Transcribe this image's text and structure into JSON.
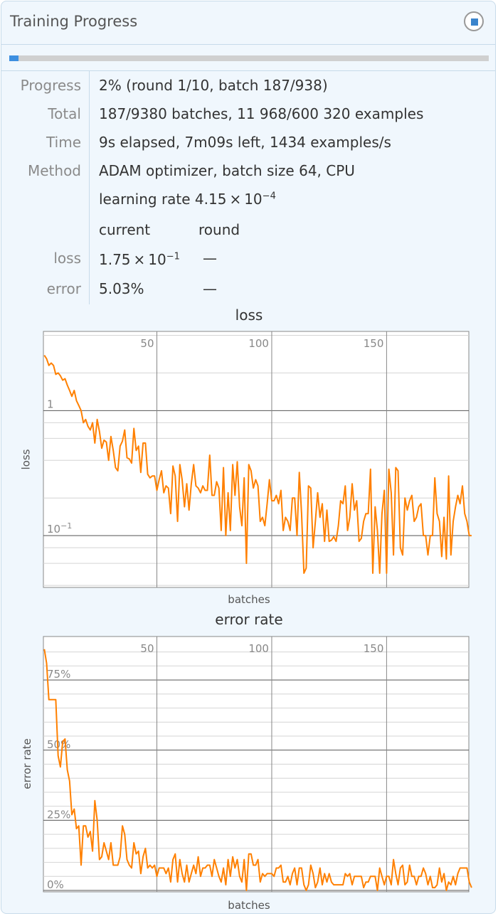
{
  "window": {
    "title": "Training Progress",
    "stop_icon": "stop-icon",
    "progress_fraction": 0.02,
    "accent": "#3d8fe0"
  },
  "info": {
    "progress_label": "Progress",
    "progress_value": "2% (round 1/10, batch 187/938)",
    "total_label": "Total",
    "total_value": "187/9380 batches, 11 968/600 320 examples",
    "time_label": "Time",
    "time_value": "9s elapsed, 7m09s left, 1434 examples/s",
    "method_label": "Method",
    "method_value": "ADAM optimizer, batch size 64, CPU",
    "lr_text": "learning rate 4.15 × 10",
    "lr_exp": "−4",
    "col_current": "current",
    "col_round": "round",
    "loss_label": "loss",
    "loss_current": "1.75 × 10",
    "loss_current_exp": "−1",
    "loss_round": "—",
    "error_label": "error",
    "error_current": "5.03%",
    "error_round": "—"
  },
  "chart_data": [
    {
      "type": "line",
      "title": "loss",
      "xlabel": "batches",
      "ylabel": "loss",
      "yscale": "log",
      "xlim": [
        0.6,
        185.8
      ],
      "ylim": [
        0.0385,
        4.3
      ],
      "xticks": [
        50,
        100,
        150
      ],
      "xtick_labels": [
        "50",
        "100",
        "150"
      ],
      "yticks": [
        1,
        0.1
      ],
      "ytick_labels": [
        "1",
        "10",
        "−1"
      ],
      "grid": true,
      "color": "#ff8000",
      "values": [
        2.77,
        2.6,
        2.3,
        2.4,
        2.3,
        1.95,
        2.0,
        1.9,
        1.75,
        1.8,
        1.6,
        1.45,
        1.3,
        1.45,
        1.2,
        1.1,
        1.0,
        0.8,
        0.85,
        0.75,
        0.7,
        0.8,
        0.55,
        0.85,
        0.68,
        0.5,
        0.58,
        0.56,
        0.4,
        0.62,
        0.48,
        0.35,
        0.33,
        0.52,
        0.57,
        0.7,
        0.42,
        0.41,
        0.38,
        0.72,
        0.48,
        0.52,
        0.32,
        0.55,
        0.55,
        0.31,
        0.29,
        0.3,
        0.3,
        0.23,
        0.28,
        0.33,
        0.22,
        0.25,
        0.24,
        0.15,
        0.36,
        0.3,
        0.13,
        0.37,
        0.28,
        0.17,
        0.26,
        0.16,
        0.26,
        0.37,
        0.25,
        0.24,
        0.22,
        0.25,
        0.23,
        0.23,
        0.44,
        0.21,
        0.21,
        0.27,
        0.24,
        0.11,
        0.35,
        0.1,
        0.22,
        0.11,
        0.37,
        0.21,
        0.39,
        0.17,
        0.12,
        0.29,
        0.06,
        0.37,
        0.33,
        0.24,
        0.28,
        0.25,
        0.13,
        0.14,
        0.12,
        0.18,
        0.28,
        0.19,
        0.19,
        0.21,
        0.18,
        0.23,
        0.11,
        0.14,
        0.13,
        0.11,
        0.2,
        0.2,
        0.1,
        0.32,
        0.15,
        0.05,
        0.055,
        0.25,
        0.24,
        0.08,
        0.13,
        0.22,
        0.14,
        0.18,
        0.09,
        0.16,
        0.09,
        0.092,
        0.098,
        0.09,
        0.12,
        0.19,
        0.18,
        0.25,
        0.11,
        0.14,
        0.26,
        0.16,
        0.19,
        0.09,
        0.095,
        0.13,
        0.15,
        0.15,
        0.34,
        0.05,
        0.17,
        0.11,
        0.05,
        0.15,
        0.23,
        0.05,
        0.34,
        0.22,
        0.07,
        0.35,
        0.33,
        0.08,
        0.07,
        0.2,
        0.16,
        0.19,
        0.21,
        0.13,
        0.14,
        0.17,
        0.18,
        0.1,
        0.1,
        0.07,
        0.1,
        0.1,
        0.29,
        0.15,
        0.13,
        0.068,
        0.14,
        0.065,
        0.3,
        0.07,
        0.13,
        0.17,
        0.21,
        0.18,
        0.25,
        0.15,
        0.13,
        0.1,
        0.1
      ]
    },
    {
      "type": "line",
      "title": "error rate",
      "xlabel": "batches",
      "ylabel": "error rate",
      "yscale": "linear",
      "xlim": [
        0.6,
        185.8
      ],
      "ylim": [
        -0.5,
        90.5
      ],
      "xticks": [
        50,
        100,
        150
      ],
      "xtick_labels": [
        "50",
        "100",
        "150"
      ],
      "yticks": [
        0,
        25,
        50,
        75
      ],
      "ytick_labels": [
        "0%",
        "25%",
        "50%",
        "75%"
      ],
      "grid": true,
      "color": "#ff8000",
      "values": [
        86,
        81,
        68,
        68,
        68,
        68,
        48,
        44,
        53,
        54,
        43,
        39,
        27,
        29,
        22,
        23,
        9,
        23,
        23,
        19,
        21,
        14,
        32,
        25,
        11,
        12,
        17,
        14,
        11,
        17,
        9,
        9,
        9,
        12,
        23,
        20,
        11,
        9,
        8,
        17,
        13,
        14,
        6,
        12,
        15,
        8,
        9,
        8,
        9,
        5,
        8,
        8,
        8,
        6,
        8,
        3,
        11,
        13,
        3,
        11,
        6,
        3,
        9,
        3,
        6,
        9,
        6,
        12,
        5,
        8,
        8,
        9,
        9,
        5,
        11,
        8,
        5,
        3,
        8,
        2,
        11,
        5,
        12,
        8,
        11,
        5,
        3,
        11,
        0,
        13,
        13,
        9,
        9,
        11,
        3,
        6,
        5,
        6,
        6,
        6,
        5,
        8,
        8,
        9,
        3,
        3,
        5,
        2,
        6,
        8,
        2,
        8,
        8,
        2,
        0,
        2,
        9,
        6,
        1,
        3,
        8,
        2,
        6,
        3,
        6,
        3,
        2,
        2,
        2,
        2,
        2,
        6,
        5,
        6,
        2,
        5,
        5,
        5,
        5,
        1,
        3,
        3,
        5,
        5,
        5,
        0,
        8,
        5,
        2,
        5,
        5,
        2,
        11,
        6,
        2,
        8,
        9,
        2,
        3,
        9,
        5,
        5,
        2,
        5,
        5,
        8,
        6,
        2,
        5,
        1,
        1,
        2,
        8,
        3,
        6,
        0,
        3,
        2,
        5,
        2,
        6,
        8,
        8,
        8,
        8,
        3,
        1
      ]
    }
  ]
}
